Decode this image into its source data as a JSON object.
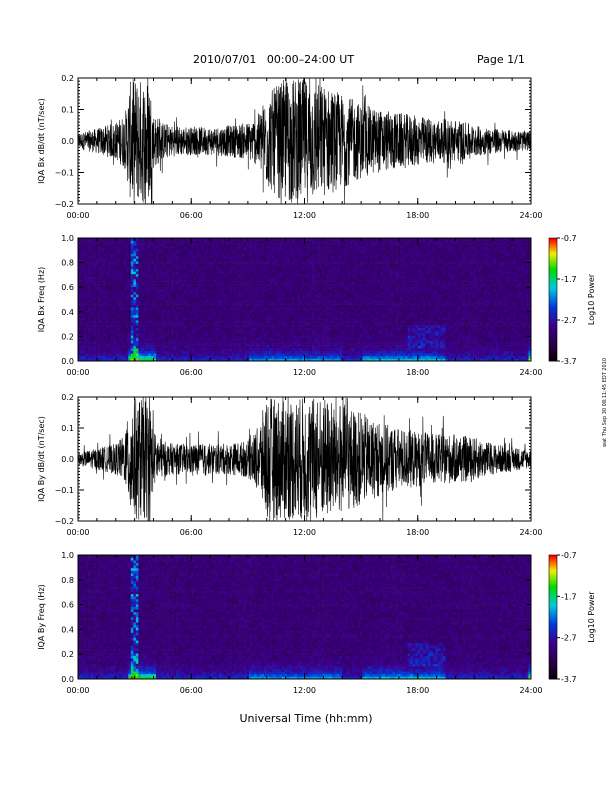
{
  "header": {
    "title": "2010/07/01   00:00–24:00 UT",
    "page": "Page 1/1"
  },
  "footer": {
    "xlabel": "Universal Time (hh:mm)",
    "stamp": "wat Thu Sep 30 08:11:45 EDT 2010"
  },
  "chart_data": [
    {
      "type": "line",
      "ylabel": "IQA Bx dB/dt (nT/sec)",
      "x_ticks": [
        "00:00",
        "06:00",
        "12:00",
        "18:00",
        "24:00"
      ],
      "y_ticks": [
        "0.2",
        "0.1",
        "0.0",
        "−0.1",
        "−0.2"
      ],
      "xlim": [
        0,
        24
      ],
      "ylim": [
        -0.2,
        0.2
      ],
      "x_unit": "hours UT",
      "envelope": {
        "x": [
          0,
          1,
          2,
          2.5,
          2.8,
          3.0,
          3.4,
          3.8,
          4.0,
          4.5,
          5,
          6,
          7,
          8,
          9,
          9.5,
          10,
          11,
          12,
          13,
          14,
          15,
          16,
          17,
          18,
          19,
          20,
          21,
          22,
          23,
          24
        ],
        "amplitude": [
          0.025,
          0.04,
          0.06,
          0.09,
          0.2,
          0.2,
          0.2,
          0.2,
          0.09,
          0.06,
          0.05,
          0.045,
          0.045,
          0.05,
          0.06,
          0.08,
          0.15,
          0.2,
          0.2,
          0.18,
          0.15,
          0.12,
          0.1,
          0.09,
          0.08,
          0.07,
          0.07,
          0.05,
          0.04,
          0.035,
          0.03
        ]
      }
    },
    {
      "type": "heatmap",
      "ylabel": "IQA Bx Freq (Hz)",
      "x_ticks": [
        "00:00",
        "06:00",
        "12:00",
        "18:00",
        "24:00"
      ],
      "y_ticks": [
        "1.0",
        "0.8",
        "0.6",
        "0.4",
        "0.2",
        "0.0"
      ],
      "xlim": [
        0,
        24
      ],
      "ylim": [
        0,
        1
      ],
      "colorbar": {
        "label": "Log10 Power",
        "ticks": [
          "-0.7",
          "-1.7",
          "-2.7",
          "-3.7"
        ],
        "range": [
          -3.7,
          -0.7
        ]
      }
    },
    {
      "type": "line",
      "ylabel": "IQA By dB/dt (nT/sec)",
      "x_ticks": [
        "00:00",
        "06:00",
        "12:00",
        "18:00",
        "24:00"
      ],
      "y_ticks": [
        "0.2",
        "0.1",
        "0.0",
        "−0.1",
        "−0.2"
      ],
      "xlim": [
        0,
        24
      ],
      "ylim": [
        -0.2,
        0.2
      ],
      "x_unit": "hours UT",
      "envelope": {
        "x": [
          0,
          1,
          2,
          2.5,
          2.8,
          3.0,
          3.4,
          3.8,
          4.0,
          4.5,
          5,
          6,
          7,
          8,
          9,
          9.5,
          10,
          11,
          12,
          13,
          14,
          15,
          16,
          17,
          18,
          19,
          20,
          21,
          22,
          23,
          24
        ],
        "amplitude": [
          0.02,
          0.035,
          0.05,
          0.08,
          0.2,
          0.2,
          0.2,
          0.2,
          0.09,
          0.06,
          0.05,
          0.05,
          0.05,
          0.05,
          0.06,
          0.1,
          0.2,
          0.2,
          0.2,
          0.2,
          0.18,
          0.15,
          0.12,
          0.1,
          0.09,
          0.08,
          0.08,
          0.07,
          0.05,
          0.04,
          0.03
        ]
      }
    },
    {
      "type": "heatmap",
      "ylabel": "IQA By Freq (Hz)",
      "x_ticks": [
        "00:00",
        "06:00",
        "12:00",
        "18:00",
        "24:00"
      ],
      "y_ticks": [
        "1.0",
        "0.8",
        "0.6",
        "0.4",
        "0.2",
        "0.0"
      ],
      "xlim": [
        0,
        24
      ],
      "ylim": [
        0,
        1
      ],
      "colorbar": {
        "label": "Log10 Power",
        "ticks": [
          "-0.7",
          "-1.7",
          "-2.7",
          "-3.7"
        ],
        "range": [
          -3.7,
          -0.7
        ]
      }
    }
  ]
}
